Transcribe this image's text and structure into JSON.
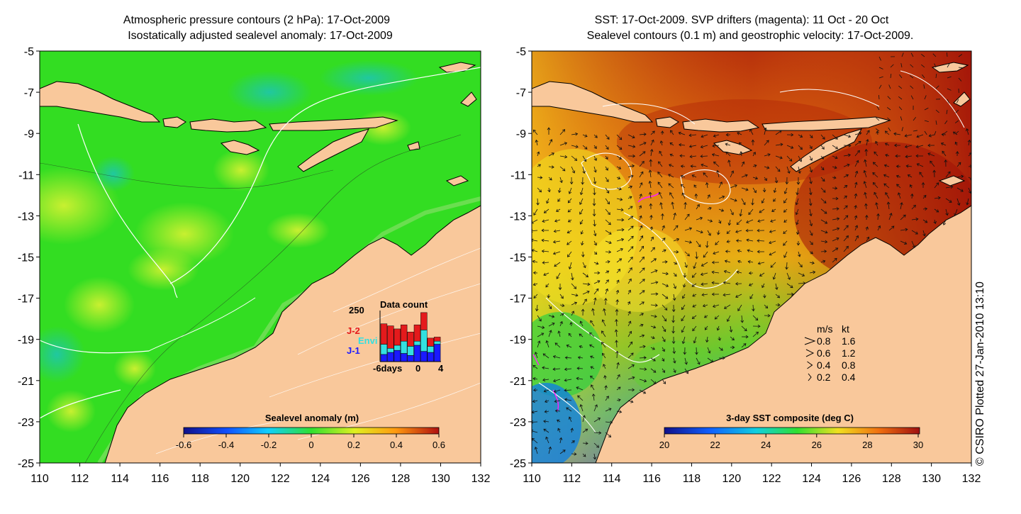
{
  "left_panel": {
    "title_line1": "Atmospheric pressure contours (2 hPa): 17-Oct-2009",
    "title_line2": "Isostatically adjusted sealevel anomaly: 17-Oct-2009",
    "colorbar": {
      "label": "Sealevel anomaly (m)",
      "ticks": [
        "-0.6",
        "-0.4",
        "-0.2",
        "0",
        "0.2",
        "0.4",
        "0.6"
      ]
    },
    "data_count": {
      "title": "Data count",
      "y_max": "250",
      "legend": [
        {
          "label": "J-2",
          "color": "#e41a1c"
        },
        {
          "label": "Envi",
          "color": "#33e0e0"
        },
        {
          "label": "J-1",
          "color": "#1a1aff"
        }
      ],
      "x_tick_start": "-6days",
      "x_tick_mid": "0",
      "x_tick_end": "4",
      "bars": [
        {
          "j1": 0.14,
          "envi": 0.2,
          "j2": 0.4
        },
        {
          "j1": 0.18,
          "envi": 0.08,
          "j2": 0.44
        },
        {
          "j1": 0.22,
          "envi": 0.1,
          "j2": 0.32
        },
        {
          "j1": 0.16,
          "envi": 0.24,
          "j2": 0.32
        },
        {
          "j1": 0.12,
          "envi": 0.18,
          "j2": 0.28
        },
        {
          "j1": 0.32,
          "envi": 0.08,
          "j2": 0.32
        },
        {
          "j1": 0.2,
          "envi": 0.42,
          "j2": 0.34
        },
        {
          "j1": 0.18,
          "envi": 0.12,
          "j2": 0.16
        },
        {
          "j1": 0.34,
          "envi": 0.06,
          "j2": 0.08
        }
      ]
    }
  },
  "right_panel": {
    "title_line1": "SST: 17-Oct-2009. SVP drifters (magenta): 11 Oct - 20 Oct",
    "title_line2": "Sealevel contours (0.1 m) and geostrophic velocity: 17-Oct-2009.",
    "colorbar": {
      "label": "3-day SST composite (deg C)",
      "ticks": [
        "20",
        "22",
        "24",
        "26",
        "28",
        "30"
      ]
    },
    "velocity_legend": {
      "header_ms": "m/s",
      "header_kt": "kt",
      "rows": [
        {
          "ms": "0.8",
          "kt": "1.6"
        },
        {
          "ms": "0.6",
          "kt": "1.2"
        },
        {
          "ms": "0.4",
          "kt": "0.8"
        },
        {
          "ms": "0.2",
          "kt": "0.4"
        }
      ]
    }
  },
  "axes": {
    "y_ticks": [
      "-5",
      "-7",
      "-9",
      "-11",
      "-13",
      "-15",
      "-17",
      "-19",
      "-21",
      "-23",
      "-25"
    ],
    "x_ticks": [
      "110",
      "112",
      "114",
      "116",
      "118",
      "120",
      "122",
      "124",
      "126",
      "128",
      "130",
      "132"
    ]
  },
  "credit": "© CSIRO Plotted 27-Jan-2010 13:10",
  "colors": {
    "land": "#f9c89b",
    "sla_base": "#33dd22",
    "sst_warm": "#b02a0a",
    "sst_mid": "#e88a10",
    "sst_cool": "#20c040"
  }
}
